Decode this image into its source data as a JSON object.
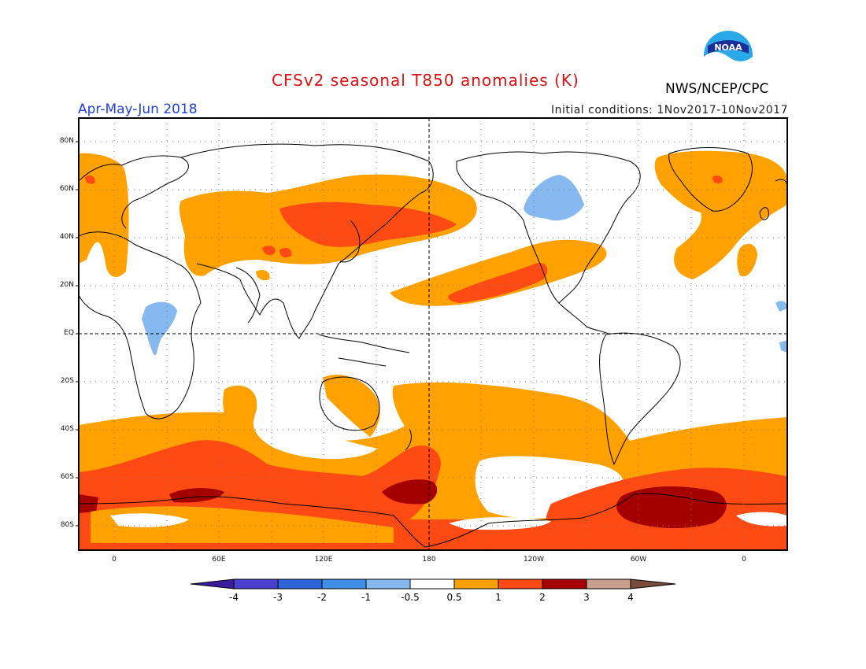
{
  "header": {
    "title": "CFSv2 seasonal T850 anomalies (K)",
    "season": "Apr-May-Jun 2018",
    "initial_conditions": "Initial conditions: 1Nov2017-10Nov2017",
    "agency": "NWS/NCEP/CPC",
    "logo_text": "NOAA"
  },
  "map": {
    "lat_labels": [
      "80N",
      "60N",
      "40N",
      "20N",
      "EQ",
      "20S",
      "40S",
      "60S",
      "80S"
    ],
    "lon_labels": [
      "0",
      "60E",
      "120E",
      "180",
      "120W",
      "60W",
      "0"
    ]
  },
  "colorbar": {
    "labels": [
      "-4",
      "-3",
      "-2",
      "-1",
      "-0.5",
      "0.5",
      "1",
      "2",
      "3",
      "4"
    ],
    "colors": [
      "#3c1c9c",
      "#4a3fcf",
      "#2a64d6",
      "#3f8ee8",
      "#86b9f0",
      "#ffffff",
      "#ffa100",
      "#ff4a13",
      "#a50000",
      "#c9a08f",
      "#7a4c3c"
    ]
  },
  "palette": {
    "orange": "#ffa100",
    "red": "#ff4a13",
    "darkred": "#a50000",
    "lightblue": "#86b9f0",
    "title_red": "#e01010",
    "season_blue": "#2040e0"
  }
}
